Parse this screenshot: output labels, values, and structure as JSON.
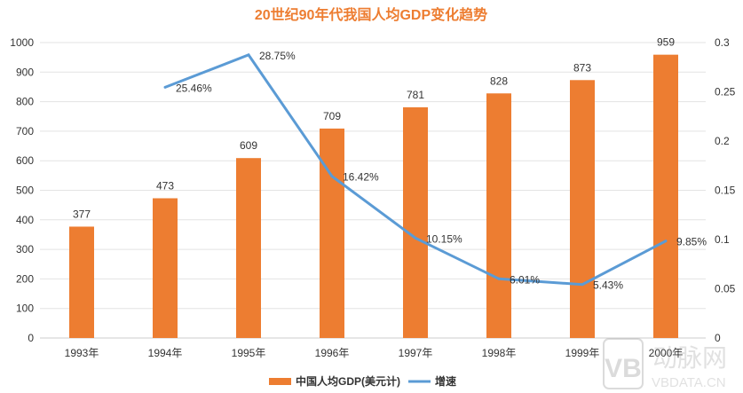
{
  "chart_data": {
    "type": "bar+line",
    "title": "20世纪90年代我国人均GDP变化趋势",
    "categories": [
      "1993年",
      "1994年",
      "1995年",
      "1996年",
      "1997年",
      "1998年",
      "1999年",
      "2000年"
    ],
    "series": [
      {
        "name": "中国人均GDP(美元计)",
        "type": "bar",
        "axis": "left",
        "color": "#ED7D31",
        "values": [
          377,
          473,
          609,
          709,
          781,
          828,
          873,
          959
        ],
        "labels": [
          "377",
          "473",
          "609",
          "709",
          "781",
          "828",
          "873",
          "959"
        ]
      },
      {
        "name": "增速",
        "type": "line",
        "axis": "right",
        "color": "#5B9BD5",
        "values": [
          null,
          0.2546,
          0.2875,
          0.1642,
          0.1015,
          0.0601,
          0.0543,
          0.0985
        ],
        "labels": [
          "",
          "25.46%",
          "28.75%",
          "16.42%",
          "10.15%",
          "6.01%",
          "5.43%",
          "9.85%"
        ]
      }
    ],
    "left_axis": {
      "ylim": [
        0,
        1000
      ],
      "ticks": [
        "0",
        "100",
        "200",
        "300",
        "400",
        "500",
        "600",
        "700",
        "800",
        "900",
        "1000"
      ]
    },
    "right_axis": {
      "ylim": [
        0,
        0.3
      ],
      "ticks": [
        "0",
        "0.05",
        "0.1",
        "0.15",
        "0.2",
        "0.25",
        "0.3"
      ]
    },
    "grid": true,
    "legend": "bottom"
  },
  "watermark": {
    "logo": "动脉网",
    "text": "VBDATA.CN"
  }
}
